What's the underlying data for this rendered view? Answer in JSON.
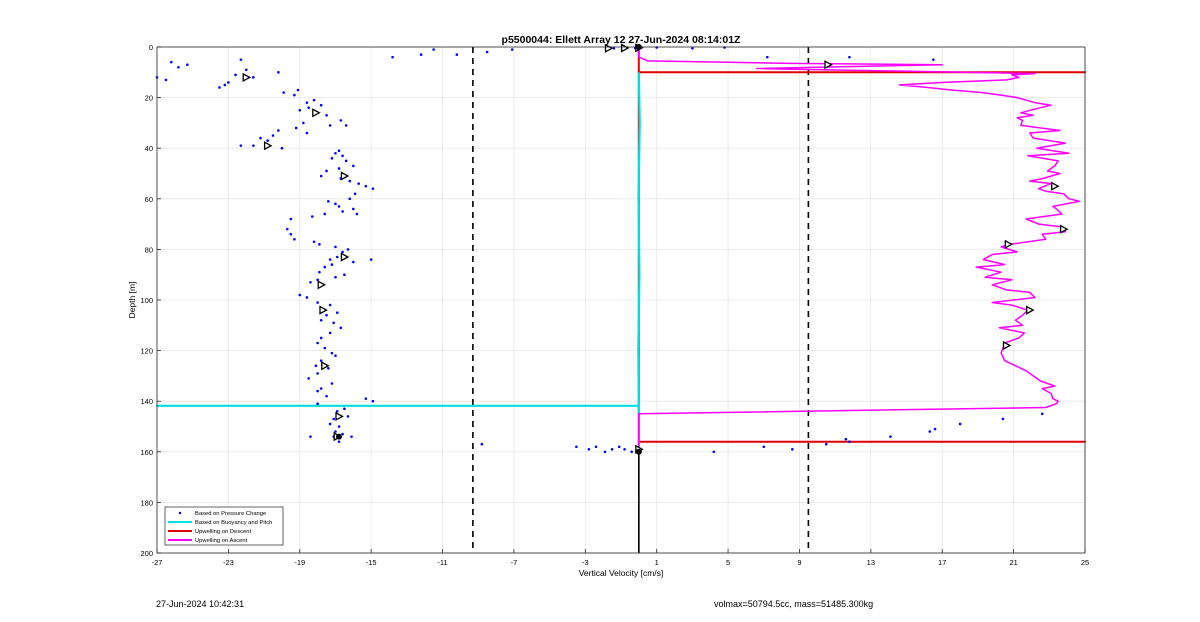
{
  "chart_data": {
    "type": "scatter",
    "title": "p5500044: Ellett Array 12 27-Jun-2024 08:14:01Z",
    "xlabel": "Vertical Velocity [cm/s]",
    "ylabel": "Depth [m]",
    "xlim": [
      -27,
      25
    ],
    "ylim": [
      0,
      200
    ],
    "y_reversed": true,
    "grid": true,
    "legend_location": "bottom-left",
    "x_ticks": [
      -27,
      -23,
      -19,
      -15,
      -11,
      -7,
      -3,
      1,
      5,
      9,
      13,
      17,
      21,
      25
    ],
    "y_ticks": [
      0,
      20,
      40,
      60,
      80,
      100,
      120,
      140,
      160,
      180,
      200
    ],
    "vertical_dashed_lines_x": [
      -9.3,
      9.5
    ],
    "series": [
      {
        "name": "Based on Pressure Change",
        "style": "points",
        "color": "#0000ff",
        "points": [
          [
            -27,
            12
          ],
          [
            -26.5,
            13
          ],
          [
            -26.2,
            6
          ],
          [
            -25.8,
            8
          ],
          [
            -25.3,
            7
          ],
          [
            -23.5,
            16
          ],
          [
            -23.2,
            15
          ],
          [
            -23,
            14
          ],
          [
            -22.6,
            11
          ],
          [
            -22.3,
            5
          ],
          [
            -22,
            9
          ],
          [
            -21.6,
            12
          ],
          [
            -20.2,
            10
          ],
          [
            -19.9,
            18
          ],
          [
            -19.3,
            19
          ],
          [
            -19.1,
            17
          ],
          [
            -19,
            25
          ],
          [
            -18.6,
            22
          ],
          [
            -18.2,
            21
          ],
          [
            -18.5,
            24
          ],
          [
            -17.8,
            23
          ],
          [
            -17.5,
            27
          ],
          [
            -16.7,
            29
          ],
          [
            -16.4,
            31
          ],
          [
            -17.3,
            31
          ],
          [
            -18.6,
            34
          ],
          [
            -19.2,
            32
          ],
          [
            -18.8,
            30
          ],
          [
            -20.2,
            33
          ],
          [
            -20.5,
            35
          ],
          [
            -20.8,
            37
          ],
          [
            -21.2,
            36
          ],
          [
            -21.6,
            39
          ],
          [
            -20,
            40
          ],
          [
            -22.3,
            39
          ],
          [
            -17,
            42
          ],
          [
            -16.8,
            41
          ],
          [
            -16.6,
            43
          ],
          [
            -17.2,
            44
          ],
          [
            -16.4,
            45
          ],
          [
            -16,
            47
          ],
          [
            -16.8,
            48
          ],
          [
            -17.5,
            49
          ],
          [
            -17.8,
            51
          ],
          [
            -16.7,
            52
          ],
          [
            -16.2,
            53
          ],
          [
            -15.7,
            54
          ],
          [
            -15.3,
            55
          ],
          [
            -14.9,
            56
          ],
          [
            -15.9,
            58
          ],
          [
            -16.2,
            60
          ],
          [
            -17,
            62
          ],
          [
            -17.4,
            61
          ],
          [
            -16.8,
            63
          ],
          [
            -16,
            64
          ],
          [
            -15.8,
            66
          ],
          [
            -16.6,
            65
          ],
          [
            -17.6,
            66
          ],
          [
            -18.3,
            67
          ],
          [
            -19.5,
            68
          ],
          [
            -19.7,
            72
          ],
          [
            -19.5,
            74
          ],
          [
            -19.3,
            76
          ],
          [
            -18.2,
            77
          ],
          [
            -17.9,
            78
          ],
          [
            -17,
            79
          ],
          [
            -16.3,
            80
          ],
          [
            -16.6,
            81
          ],
          [
            -16.9,
            83
          ],
          [
            -17.3,
            84
          ],
          [
            -16,
            85
          ],
          [
            -15,
            84
          ],
          [
            -17.2,
            86
          ],
          [
            -17.6,
            87
          ],
          [
            -17.9,
            89
          ],
          [
            -16.5,
            90
          ],
          [
            -17,
            91
          ],
          [
            -18,
            92
          ],
          [
            -18.4,
            93
          ],
          [
            -19,
            98
          ],
          [
            -18.6,
            99
          ],
          [
            -18,
            101
          ],
          [
            -17.3,
            102
          ],
          [
            -16.9,
            105
          ],
          [
            -17.5,
            106
          ],
          [
            -17.8,
            108
          ],
          [
            -17.1,
            109
          ],
          [
            -16.7,
            111
          ],
          [
            -17.3,
            113
          ],
          [
            -17.8,
            115
          ],
          [
            -18,
            117
          ],
          [
            -17.6,
            119
          ],
          [
            -17.2,
            121
          ],
          [
            -17,
            122
          ],
          [
            -17.8,
            124
          ],
          [
            -18.1,
            126
          ],
          [
            -17.4,
            127
          ],
          [
            -18,
            129
          ],
          [
            -18.5,
            131
          ],
          [
            -17.2,
            133
          ],
          [
            -17.8,
            135
          ],
          [
            -18,
            136
          ],
          [
            -17.5,
            138
          ],
          [
            -15.3,
            139
          ],
          [
            -14.9,
            140
          ],
          [
            -18,
            141
          ],
          [
            -16.5,
            143
          ],
          [
            -16.9,
            144
          ],
          [
            -16.3,
            146
          ],
          [
            -17.1,
            147
          ],
          [
            -17.3,
            149
          ],
          [
            -16.8,
            150
          ],
          [
            -17,
            152
          ],
          [
            -16.6,
            153
          ],
          [
            -17.1,
            154
          ],
          [
            -18.4,
            154
          ],
          [
            -16.1,
            154
          ],
          [
            -16.8,
            156
          ],
          [
            -11.5,
            1
          ],
          [
            -12.2,
            3
          ],
          [
            -13.8,
            4
          ],
          [
            -10.2,
            3
          ],
          [
            -8.5,
            2
          ],
          [
            -7.1,
            1
          ],
          [
            -1.8,
            1
          ],
          [
            -1.4,
            0.5
          ],
          [
            -0.9,
            0.3
          ],
          [
            -0.2,
            0.4
          ],
          [
            1,
            0.2
          ],
          [
            3,
            0.5
          ],
          [
            4.8,
            0.2
          ],
          [
            7.2,
            4
          ],
          [
            11.8,
            4
          ],
          [
            16.5,
            5
          ],
          [
            10.6,
            7
          ],
          [
            -8.8,
            157
          ],
          [
            -3.5,
            158
          ],
          [
            -2.8,
            159
          ],
          [
            -2.4,
            158
          ],
          [
            -1.9,
            160
          ],
          [
            -1.5,
            159
          ],
          [
            -1.1,
            158
          ],
          [
            -0.8,
            159
          ],
          [
            -0.4,
            160
          ],
          [
            0,
            159
          ],
          [
            4.2,
            160
          ],
          [
            7,
            158
          ],
          [
            8.6,
            159
          ],
          [
            10.5,
            157
          ],
          [
            11.6,
            155
          ],
          [
            11.8,
            156
          ],
          [
            14.1,
            154
          ],
          [
            16.3,
            152
          ],
          [
            16.6,
            151
          ],
          [
            18,
            149
          ],
          [
            20.4,
            147
          ],
          [
            22.6,
            145
          ]
        ]
      },
      {
        "name": "Based on Buoyancy and Pitch",
        "style": "line",
        "color": "#00e0e0",
        "points": [
          [
            0,
            10
          ],
          [
            0.05,
            30
          ],
          [
            -0.02,
            60
          ],
          [
            0.03,
            90
          ],
          [
            -0.03,
            120
          ],
          [
            0,
            141.8
          ],
          [
            -27,
            141.8
          ],
          [
            0,
            141.8
          ],
          [
            0,
            143
          ],
          [
            0,
            159
          ]
        ]
      },
      {
        "name": "Upwelling on Descent",
        "style": "line",
        "color": "#e00000",
        "points": [
          [
            0,
            0
          ],
          [
            0,
            10
          ],
          [
            25,
            10
          ],
          [
            0,
            10
          ],
          [
            0,
            156
          ],
          [
            25,
            156
          ],
          [
            0,
            156
          ],
          [
            0,
            159
          ]
        ]
      },
      {
        "name": "Upwelling on Ascent",
        "style": "line",
        "color": "#ff00ff",
        "points": [
          [
            0,
            159
          ],
          [
            0,
            156
          ],
          [
            0,
            145
          ],
          [
            22.8,
            142.5
          ],
          [
            23.4,
            141
          ],
          [
            23.5,
            140
          ],
          [
            23.2,
            139
          ],
          [
            23.1,
            137
          ],
          [
            22.6,
            135
          ],
          [
            23.3,
            134
          ],
          [
            22.5,
            132
          ],
          [
            22.1,
            130
          ],
          [
            21.7,
            128
          ],
          [
            21.1,
            126
          ],
          [
            20.5,
            124
          ],
          [
            20.3,
            121
          ],
          [
            20.4,
            119
          ],
          [
            20.5,
            117
          ],
          [
            21.3,
            115
          ],
          [
            21.6,
            113
          ],
          [
            20.2,
            111
          ],
          [
            21.5,
            110
          ],
          [
            21.1,
            108
          ],
          [
            21.5,
            106
          ],
          [
            21.8,
            104
          ],
          [
            20.9,
            102
          ],
          [
            19.8,
            101
          ],
          [
            22.2,
            99
          ],
          [
            21.9,
            97
          ],
          [
            20.6,
            96
          ],
          [
            19.8,
            94
          ],
          [
            20.9,
            92
          ],
          [
            19.4,
            91
          ],
          [
            20.3,
            89
          ],
          [
            18.9,
            87
          ],
          [
            20.5,
            86
          ],
          [
            19.3,
            84
          ],
          [
            19.8,
            82
          ],
          [
            21.2,
            81
          ],
          [
            20.3,
            79
          ],
          [
            20.8,
            78
          ],
          [
            22.8,
            76
          ],
          [
            22.6,
            74
          ],
          [
            23.9,
            73
          ],
          [
            23.6,
            71
          ],
          [
            22.4,
            70
          ],
          [
            21.7,
            68
          ],
          [
            23.7,
            66
          ],
          [
            23.4,
            64
          ],
          [
            23.2,
            63
          ],
          [
            24.7,
            61
          ],
          [
            24.1,
            60
          ],
          [
            23.8,
            58
          ],
          [
            22.8,
            57
          ],
          [
            22.4,
            56
          ],
          [
            23.1,
            54
          ],
          [
            21.9,
            53
          ],
          [
            22.6,
            52
          ],
          [
            23.6,
            50
          ],
          [
            22.9,
            49
          ],
          [
            23.3,
            47
          ],
          [
            23.5,
            45
          ],
          [
            21.8,
            43
          ],
          [
            24.1,
            42
          ],
          [
            22.3,
            40
          ],
          [
            23.9,
            38
          ],
          [
            22.1,
            36
          ],
          [
            21.9,
            34
          ],
          [
            23.6,
            33
          ],
          [
            21.4,
            31
          ],
          [
            21.5,
            29
          ],
          [
            21.2,
            28
          ],
          [
            22.1,
            27
          ],
          [
            21.4,
            26
          ],
          [
            22.5,
            24
          ],
          [
            23.1,
            23
          ],
          [
            22.2,
            22
          ],
          [
            21.2,
            20
          ],
          [
            20.3,
            19
          ],
          [
            19.2,
            18
          ],
          [
            17.5,
            17
          ],
          [
            16.2,
            16
          ],
          [
            14.6,
            15
          ],
          [
            17.1,
            14
          ],
          [
            20.6,
            13
          ],
          [
            21.3,
            12
          ],
          [
            20.9,
            11
          ],
          [
            22.2,
            10.5
          ],
          [
            6.6,
            8.5
          ],
          [
            17,
            7
          ],
          [
            8.5,
            6.5
          ],
          [
            0.5,
            5.5
          ],
          [
            0,
            4
          ],
          [
            0,
            0
          ]
        ]
      }
    ],
    "triangle_markers": [
      [
        -22,
        12
      ],
      [
        -18.1,
        26
      ],
      [
        -20.8,
        39
      ],
      [
        -16.5,
        51
      ],
      [
        -16.5,
        83
      ],
      [
        -17.8,
        94
      ],
      [
        -17.7,
        104
      ],
      [
        -17.6,
        126
      ],
      [
        -16.8,
        146
      ],
      [
        -16.9,
        154
      ],
      [
        -1.7,
        0.5
      ],
      [
        -0.8,
        0.4
      ],
      [
        0,
        0.3
      ],
      [
        0,
        159
      ],
      [
        10.6,
        7
      ],
      [
        23.3,
        55
      ],
      [
        23.8,
        72
      ],
      [
        20.7,
        78
      ],
      [
        21.9,
        104
      ],
      [
        20.6,
        118
      ]
    ],
    "filled_markers": [
      [
        0,
        0
      ],
      [
        0,
        160
      ],
      [
        -16.8,
        154
      ]
    ]
  },
  "footer": {
    "timestamp": "27-Jun-2024 10:42:31",
    "summary": "volmax=50794.5cc, mass=51485.300kg"
  }
}
